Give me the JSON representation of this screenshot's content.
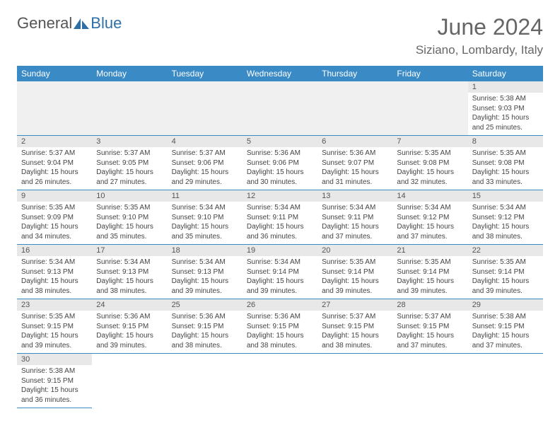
{
  "logo": {
    "part1": "General",
    "part2": "Blue"
  },
  "title": "June 2024",
  "location": "Siziano, Lombardy, Italy",
  "weekdays": [
    "Sunday",
    "Monday",
    "Tuesday",
    "Wednesday",
    "Thursday",
    "Friday",
    "Saturday"
  ],
  "colors": {
    "header_bg": "#3a8ac5",
    "header_text": "#ffffff",
    "daynum_bg": "#e8e8e8",
    "border": "#3a8ac5",
    "title_color": "#666666"
  },
  "typography": {
    "title_fontsize": 32,
    "location_fontsize": 17,
    "weekday_fontsize": 12,
    "daynum_fontsize": 11,
    "body_fontsize": 10
  },
  "first_weekday_index": 6,
  "days": [
    {
      "n": 1,
      "sunrise": "5:38 AM",
      "sunset": "9:03 PM",
      "daylight": "15 hours and 25 minutes."
    },
    {
      "n": 2,
      "sunrise": "5:37 AM",
      "sunset": "9:04 PM",
      "daylight": "15 hours and 26 minutes."
    },
    {
      "n": 3,
      "sunrise": "5:37 AM",
      "sunset": "9:05 PM",
      "daylight": "15 hours and 27 minutes."
    },
    {
      "n": 4,
      "sunrise": "5:37 AM",
      "sunset": "9:06 PM",
      "daylight": "15 hours and 29 minutes."
    },
    {
      "n": 5,
      "sunrise": "5:36 AM",
      "sunset": "9:06 PM",
      "daylight": "15 hours and 30 minutes."
    },
    {
      "n": 6,
      "sunrise": "5:36 AM",
      "sunset": "9:07 PM",
      "daylight": "15 hours and 31 minutes."
    },
    {
      "n": 7,
      "sunrise": "5:35 AM",
      "sunset": "9:08 PM",
      "daylight": "15 hours and 32 minutes."
    },
    {
      "n": 8,
      "sunrise": "5:35 AM",
      "sunset": "9:08 PM",
      "daylight": "15 hours and 33 minutes."
    },
    {
      "n": 9,
      "sunrise": "5:35 AM",
      "sunset": "9:09 PM",
      "daylight": "15 hours and 34 minutes."
    },
    {
      "n": 10,
      "sunrise": "5:35 AM",
      "sunset": "9:10 PM",
      "daylight": "15 hours and 35 minutes."
    },
    {
      "n": 11,
      "sunrise": "5:34 AM",
      "sunset": "9:10 PM",
      "daylight": "15 hours and 35 minutes."
    },
    {
      "n": 12,
      "sunrise": "5:34 AM",
      "sunset": "9:11 PM",
      "daylight": "15 hours and 36 minutes."
    },
    {
      "n": 13,
      "sunrise": "5:34 AM",
      "sunset": "9:11 PM",
      "daylight": "15 hours and 37 minutes."
    },
    {
      "n": 14,
      "sunrise": "5:34 AM",
      "sunset": "9:12 PM",
      "daylight": "15 hours and 37 minutes."
    },
    {
      "n": 15,
      "sunrise": "5:34 AM",
      "sunset": "9:12 PM",
      "daylight": "15 hours and 38 minutes."
    },
    {
      "n": 16,
      "sunrise": "5:34 AM",
      "sunset": "9:13 PM",
      "daylight": "15 hours and 38 minutes."
    },
    {
      "n": 17,
      "sunrise": "5:34 AM",
      "sunset": "9:13 PM",
      "daylight": "15 hours and 38 minutes."
    },
    {
      "n": 18,
      "sunrise": "5:34 AM",
      "sunset": "9:13 PM",
      "daylight": "15 hours and 39 minutes."
    },
    {
      "n": 19,
      "sunrise": "5:34 AM",
      "sunset": "9:14 PM",
      "daylight": "15 hours and 39 minutes."
    },
    {
      "n": 20,
      "sunrise": "5:35 AM",
      "sunset": "9:14 PM",
      "daylight": "15 hours and 39 minutes."
    },
    {
      "n": 21,
      "sunrise": "5:35 AM",
      "sunset": "9:14 PM",
      "daylight": "15 hours and 39 minutes."
    },
    {
      "n": 22,
      "sunrise": "5:35 AM",
      "sunset": "9:14 PM",
      "daylight": "15 hours and 39 minutes."
    },
    {
      "n": 23,
      "sunrise": "5:35 AM",
      "sunset": "9:15 PM",
      "daylight": "15 hours and 39 minutes."
    },
    {
      "n": 24,
      "sunrise": "5:36 AM",
      "sunset": "9:15 PM",
      "daylight": "15 hours and 39 minutes."
    },
    {
      "n": 25,
      "sunrise": "5:36 AM",
      "sunset": "9:15 PM",
      "daylight": "15 hours and 38 minutes."
    },
    {
      "n": 26,
      "sunrise": "5:36 AM",
      "sunset": "9:15 PM",
      "daylight": "15 hours and 38 minutes."
    },
    {
      "n": 27,
      "sunrise": "5:37 AM",
      "sunset": "9:15 PM",
      "daylight": "15 hours and 38 minutes."
    },
    {
      "n": 28,
      "sunrise": "5:37 AM",
      "sunset": "9:15 PM",
      "daylight": "15 hours and 37 minutes."
    },
    {
      "n": 29,
      "sunrise": "5:38 AM",
      "sunset": "9:15 PM",
      "daylight": "15 hours and 37 minutes."
    },
    {
      "n": 30,
      "sunrise": "5:38 AM",
      "sunset": "9:15 PM",
      "daylight": "15 hours and 36 minutes."
    }
  ],
  "labels": {
    "sunrise": "Sunrise:",
    "sunset": "Sunset:",
    "daylight": "Daylight:"
  }
}
